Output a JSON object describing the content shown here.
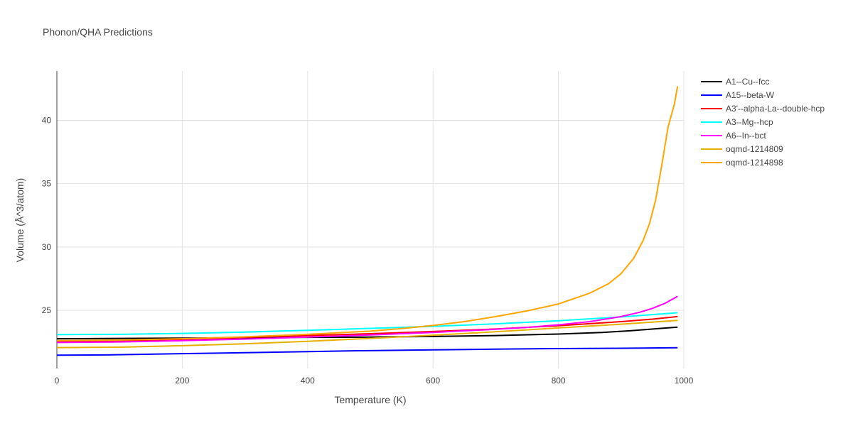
{
  "chart_data": {
    "type": "line",
    "title": "Phonon/QHA Predictions",
    "xlabel": "Temperature (K)",
    "ylabel": "Volume (Å^3/atom)",
    "xlim": [
      0,
      1000
    ],
    "ylim": [
      20.4,
      43.9
    ],
    "xticks": [
      0,
      200,
      400,
      600,
      800,
      1000
    ],
    "yticks": [
      25,
      30,
      35,
      40
    ],
    "grid": true,
    "legend_position": "top-right",
    "series": [
      {
        "name": "A1--Cu--fcc",
        "color": "#000000",
        "x": [
          0,
          100,
          200,
          300,
          400,
          500,
          600,
          700,
          800,
          870,
          920,
          960,
          990
        ],
        "y": [
          22.75,
          22.78,
          22.8,
          22.83,
          22.86,
          22.88,
          22.93,
          23.0,
          23.12,
          23.25,
          23.4,
          23.55,
          23.67
        ]
      },
      {
        "name": "A15--beta-W",
        "color": "#0000ff",
        "x": [
          0,
          80,
          200,
          300,
          400,
          480,
          600,
          700,
          800,
          900,
          990
        ],
        "y": [
          21.45,
          21.47,
          21.57,
          21.65,
          21.73,
          21.8,
          21.87,
          21.93,
          21.97,
          22.0,
          22.04
        ]
      },
      {
        "name": "A3'--alpha-La--double-hcp",
        "color": "#ff0000",
        "x": [
          0,
          100,
          200,
          300,
          400,
          500,
          600,
          700,
          800,
          900,
          950,
          990
        ],
        "y": [
          22.55,
          22.6,
          22.7,
          22.85,
          23.0,
          23.15,
          23.32,
          23.52,
          23.78,
          24.1,
          24.3,
          24.5
        ]
      },
      {
        "name": "A3--Mg--hcp",
        "color": "#00ffff",
        "x": [
          0,
          100,
          200,
          300,
          400,
          500,
          600,
          700,
          800,
          900,
          990
        ],
        "y": [
          23.08,
          23.1,
          23.17,
          23.28,
          23.42,
          23.57,
          23.73,
          23.93,
          24.17,
          24.47,
          24.8
        ]
      },
      {
        "name": "A6--In--bct",
        "color": "#ff00ff",
        "x": [
          0,
          100,
          200,
          300,
          400,
          500,
          600,
          700,
          750,
          800,
          850,
          900,
          930,
          950,
          970,
          990
        ],
        "y": [
          22.45,
          22.5,
          22.6,
          22.72,
          22.88,
          23.05,
          23.25,
          23.5,
          23.65,
          23.85,
          24.1,
          24.5,
          24.85,
          25.15,
          25.55,
          26.1
        ]
      },
      {
        "name": "oqmd-1214809",
        "color": "#e6b000",
        "x": [
          0,
          100,
          200,
          300,
          400,
          500,
          600,
          700,
          800,
          900,
          990
        ],
        "y": [
          22.05,
          22.08,
          22.2,
          22.35,
          22.55,
          22.78,
          23.03,
          23.3,
          23.6,
          23.9,
          24.2
        ]
      },
      {
        "name": "oqmd-1214898",
        "color": "#ffa500",
        "x": [
          0,
          100,
          200,
          300,
          400,
          500,
          550,
          600,
          650,
          700,
          750,
          800,
          850,
          880,
          900,
          920,
          935,
          945,
          955,
          965,
          975,
          985,
          990
        ],
        "y": [
          22.6,
          22.65,
          22.75,
          22.9,
          23.1,
          23.35,
          23.55,
          23.8,
          24.1,
          24.5,
          24.95,
          25.5,
          26.35,
          27.1,
          27.9,
          29.1,
          30.5,
          31.8,
          33.7,
          36.5,
          39.5,
          41.3,
          42.7
        ]
      }
    ]
  }
}
